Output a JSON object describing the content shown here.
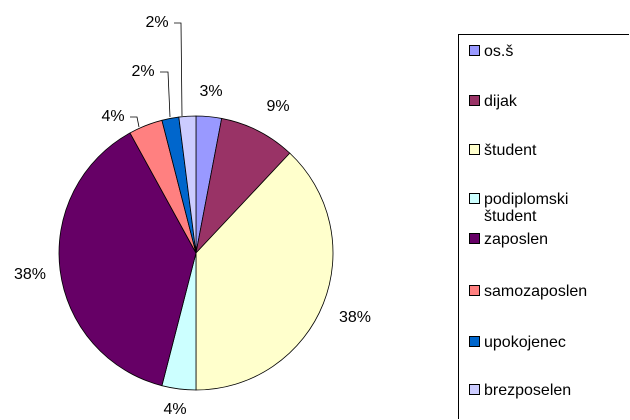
{
  "chart_data": {
    "type": "pie",
    "categories": [
      "os.š",
      "dijak",
      "študent",
      "podiplomski študent",
      "zaposlen",
      "samozaposlen",
      "upokojenec",
      "brezposelen"
    ],
    "values": [
      3,
      9,
      38,
      4,
      38,
      4,
      2,
      2
    ],
    "value_labels": [
      "3%",
      "9%",
      "38%",
      "4%",
      "38%",
      "4%",
      "2%",
      "2%"
    ],
    "colors": [
      "#9999ff",
      "#993366",
      "#ffffcc",
      "#ccffff",
      "#660066",
      "#ff8080",
      "#0066cc",
      "#ccccff"
    ],
    "legend": "right"
  }
}
